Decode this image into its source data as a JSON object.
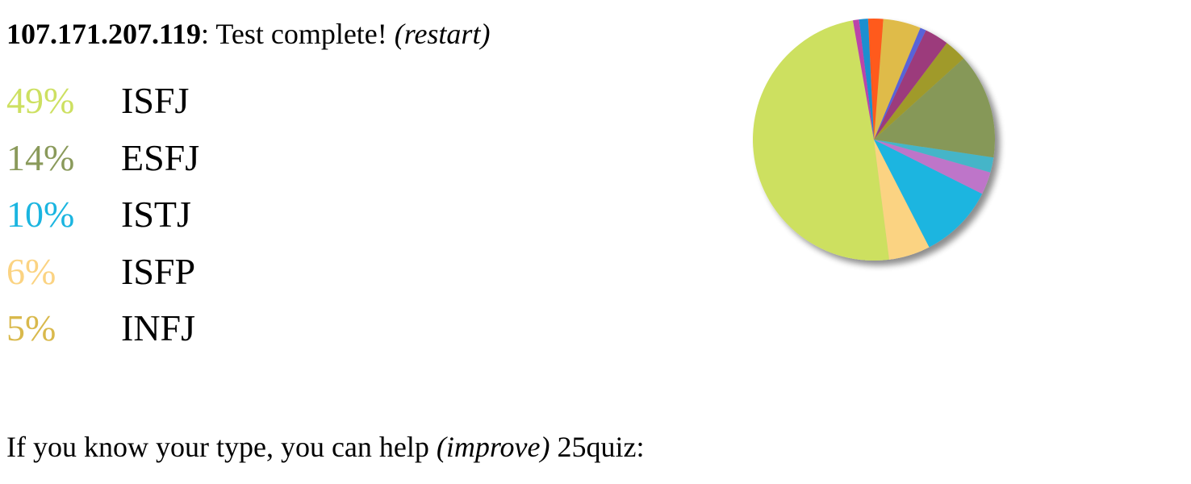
{
  "header": {
    "ip": "107.171.207.119",
    "separator": ":",
    "message": " Test complete! ",
    "restart_label": "(restart)"
  },
  "results": [
    {
      "percent": "49%",
      "type": "ISFJ",
      "color": "#cde061"
    },
    {
      "percent": "14%",
      "type": "ESFJ",
      "color": "#8a9a5b"
    },
    {
      "percent": "10%",
      "type": "ISTJ",
      "color": "#1bb5e0"
    },
    {
      "percent": "6%",
      "type": "ISFP",
      "color": "#fbd382"
    },
    {
      "percent": "5%",
      "type": "INFJ",
      "color": "#d9b94c"
    }
  ],
  "footer": {
    "text_before": "If you know your type, you can help ",
    "improve_label": "(improve)",
    "text_after": " 25quiz:"
  },
  "chart_data": {
    "type": "pie",
    "values": [
      49,
      5.5,
      10,
      3,
      2,
      14,
      3,
      3.2,
      0.8,
      5,
      2,
      1.2,
      0.8
    ],
    "colors": [
      "#cde061",
      "#fbd382",
      "#1bb5e0",
      "#be75c9",
      "#45b5c8",
      "#869858",
      "#a09a2b",
      "#9c3a7c",
      "#5863d8",
      "#dfbb48",
      "#ff5a1f",
      "#1a8fd0",
      "#bb44aa"
    ],
    "start_angle_deg": 100,
    "direction": "counterclockwise"
  }
}
